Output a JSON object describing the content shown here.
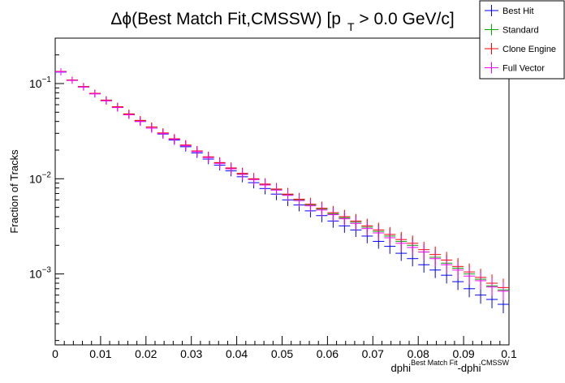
{
  "chart_data": {
    "type": "scatter",
    "title": {
      "main": "Δϕ(Best Match Fit,CMSSW) [p",
      "subscript": "T",
      "tail": " > 0.0 GeV/c]"
    },
    "xlabel": {
      "base": "dphi",
      "sup1": "Best Match Fit",
      "mid": "-dphi",
      "sup2": "CMSSW"
    },
    "ylabel": "Fraction of Tracks",
    "xlim": [
      0,
      0.1
    ],
    "ylim": [
      0.00018,
      0.3
    ],
    "yscale": "log",
    "x_ticks": [
      "0",
      "0.01",
      "0.02",
      "0.03",
      "0.04",
      "0.05",
      "0.06",
      "0.07",
      "0.08",
      "0.09",
      "0.1"
    ],
    "y_ticks": [
      {
        "base": "10",
        "exp": "−1",
        "value": 0.1
      },
      {
        "base": "10",
        "exp": "−2",
        "value": 0.01
      },
      {
        "base": "10",
        "exp": "−3",
        "value": 0.001
      }
    ],
    "grid": false,
    "legend_position": "top-right",
    "bin_width": 0.0025,
    "x": [
      0.00125,
      0.00375,
      0.00625,
      0.00875,
      0.01125,
      0.01375,
      0.01625,
      0.01875,
      0.02125,
      0.02375,
      0.02625,
      0.02875,
      0.03125,
      0.03375,
      0.03625,
      0.03875,
      0.04125,
      0.04375,
      0.04625,
      0.04875,
      0.05125,
      0.05375,
      0.05625,
      0.05875,
      0.06125,
      0.06375,
      0.06625,
      0.06875,
      0.07125,
      0.07375,
      0.07625,
      0.07875,
      0.08125,
      0.08375,
      0.08625,
      0.08875,
      0.09125,
      0.09375,
      0.09625,
      0.09875
    ],
    "series": [
      {
        "name": "Best Hit",
        "color": "#0000ff",
        "values": [
          0.132,
          0.108,
          0.092,
          0.078,
          0.066,
          0.056,
          0.047,
          0.04,
          0.034,
          0.0295,
          0.0255,
          0.0217,
          0.0187,
          0.0161,
          0.0139,
          0.0121,
          0.0105,
          0.0091,
          0.0079,
          0.0069,
          0.006,
          0.0053,
          0.0046,
          0.0041,
          0.0036,
          0.0032,
          0.0029,
          0.0025,
          0.0022,
          0.00195,
          0.00165,
          0.00145,
          0.00125,
          0.0011,
          0.00097,
          0.00083,
          0.0007,
          0.0006,
          0.00054,
          0.00048
        ]
      },
      {
        "name": "Standard",
        "color": "#00aa00",
        "values": [
          0.134,
          0.109,
          0.093,
          0.079,
          0.067,
          0.057,
          0.048,
          0.041,
          0.035,
          0.0302,
          0.0262,
          0.0225,
          0.0195,
          0.0169,
          0.0147,
          0.0129,
          0.0113,
          0.0099,
          0.0087,
          0.0077,
          0.0068,
          0.006,
          0.0053,
          0.0048,
          0.0043,
          0.0039,
          0.0035,
          0.0031,
          0.0028,
          0.0025,
          0.0022,
          0.002,
          0.0017,
          0.0015,
          0.0013,
          0.00115,
          0.001,
          0.00088,
          0.00075,
          0.00068
        ]
      },
      {
        "name": "Clone Engine",
        "color": "#ff0000",
        "values": [
          0.134,
          0.109,
          0.093,
          0.079,
          0.067,
          0.057,
          0.048,
          0.041,
          0.035,
          0.0303,
          0.0263,
          0.0226,
          0.0196,
          0.017,
          0.0148,
          0.013,
          0.0114,
          0.01,
          0.0088,
          0.0078,
          0.0069,
          0.0061,
          0.0054,
          0.0049,
          0.0044,
          0.004,
          0.0036,
          0.0032,
          0.0029,
          0.0026,
          0.0023,
          0.0021,
          0.0018,
          0.0016,
          0.0014,
          0.0012,
          0.00105,
          0.00092,
          0.0008,
          0.00072
        ]
      },
      {
        "name": "Full Vector",
        "color": "#ff00ff",
        "values": [
          0.133,
          0.108,
          0.092,
          0.078,
          0.066,
          0.056,
          0.047,
          0.04,
          0.034,
          0.0298,
          0.0259,
          0.0222,
          0.0193,
          0.0167,
          0.0145,
          0.0127,
          0.0111,
          0.0098,
          0.0086,
          0.0076,
          0.0067,
          0.0059,
          0.0052,
          0.0047,
          0.0042,
          0.0038,
          0.0034,
          0.003,
          0.0027,
          0.0024,
          0.0021,
          0.0019,
          0.0017,
          0.00145,
          0.00125,
          0.0011,
          0.00095,
          0.00085,
          0.00073,
          0.00066
        ]
      }
    ]
  }
}
